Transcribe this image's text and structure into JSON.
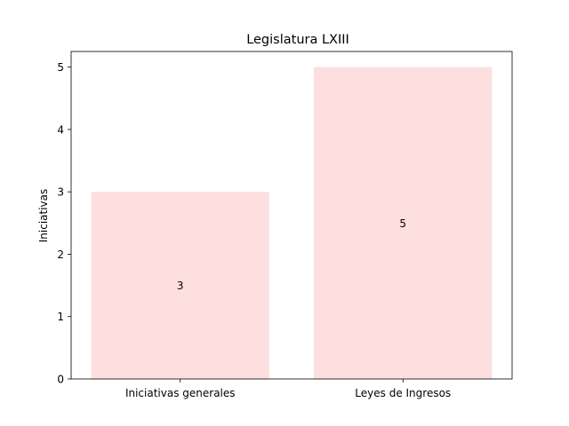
{
  "chart_data": {
    "type": "bar",
    "title": "Legislatura LXIII",
    "xlabel": "",
    "ylabel": "Iniciativas",
    "categories": [
      "Iniciativas generales",
      "Leyes de Ingresos"
    ],
    "values": [
      3,
      5
    ],
    "data_labels": [
      "3",
      "5"
    ],
    "ylim": [
      0,
      5.25
    ],
    "yticks": [
      0,
      1,
      2,
      3,
      4,
      5
    ],
    "grid": false,
    "legend": "none",
    "bar_color": "#fddfdf"
  }
}
